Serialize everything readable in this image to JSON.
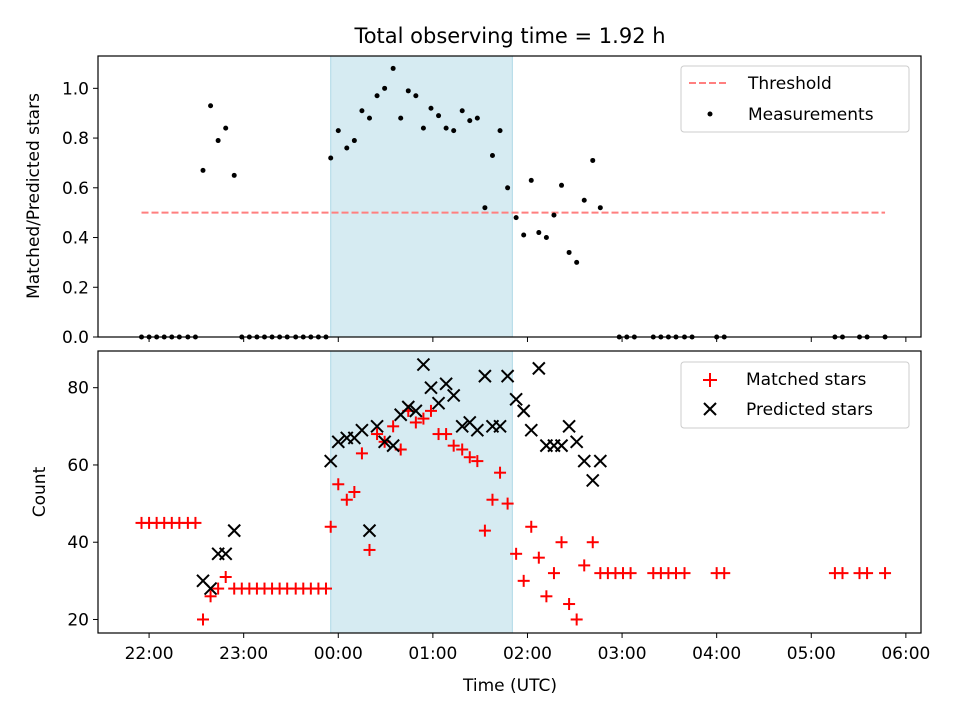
{
  "title": "Total observing time = 1.92 h",
  "xlabel": "Time (UTC)",
  "chart_data": [
    {
      "type": "scatter",
      "ylabel": "Matched/Predicted stars",
      "ylim": [
        0,
        1.13
      ],
      "yticks": [
        "0.0",
        "0.2",
        "0.4",
        "0.6",
        "0.8",
        "1.0"
      ],
      "legend_position": "top-right",
      "shaded_span_hours": [
        -0.08,
        1.84
      ],
      "shade_color": "#add8e6",
      "threshold": {
        "name": "Threshold",
        "value": 0.5,
        "x_range_hours": [
          -2.08,
          5.78
        ],
        "color": "#ff7f7f",
        "style": "dashed"
      },
      "measurements": {
        "name": "Measurements",
        "color": "#000000",
        "points": [
          [
            -2.08,
            0
          ],
          [
            -2.0,
            0
          ],
          [
            -1.92,
            0
          ],
          [
            -1.84,
            0
          ],
          [
            -1.76,
            0
          ],
          [
            -1.68,
            0
          ],
          [
            -1.59,
            0
          ],
          [
            -1.51,
            0
          ],
          [
            -1.43,
            0.67
          ],
          [
            -1.35,
            0.93
          ],
          [
            -1.27,
            0.79
          ],
          [
            -1.19,
            0.84
          ],
          [
            -1.1,
            0.65
          ],
          [
            -1.02,
            0
          ],
          [
            -0.94,
            0
          ],
          [
            -0.86,
            0
          ],
          [
            -0.78,
            0
          ],
          [
            -0.7,
            0
          ],
          [
            -0.62,
            0
          ],
          [
            -0.54,
            0
          ],
          [
            -0.45,
            0
          ],
          [
            -0.37,
            0
          ],
          [
            -0.29,
            0
          ],
          [
            -0.21,
            0
          ],
          [
            -0.13,
            0
          ],
          [
            -0.08,
            0.72
          ],
          [
            0.0,
            0.83
          ],
          [
            0.09,
            0.76
          ],
          [
            0.17,
            0.79
          ],
          [
            0.25,
            0.91
          ],
          [
            0.33,
            0.88
          ],
          [
            0.41,
            0.97
          ],
          [
            0.49,
            1.0
          ],
          [
            0.58,
            1.08
          ],
          [
            0.66,
            0.88
          ],
          [
            0.74,
            0.99
          ],
          [
            0.82,
            0.97
          ],
          [
            0.9,
            0.84
          ],
          [
            0.98,
            0.92
          ],
          [
            1.06,
            0.89
          ],
          [
            1.14,
            0.84
          ],
          [
            1.22,
            0.83
          ],
          [
            1.31,
            0.91
          ],
          [
            1.39,
            0.87
          ],
          [
            1.47,
            0.88
          ],
          [
            1.55,
            0.52
          ],
          [
            1.63,
            0.73
          ],
          [
            1.71,
            0.83
          ],
          [
            1.79,
            0.6
          ],
          [
            1.88,
            0.48
          ],
          [
            1.96,
            0.41
          ],
          [
            2.04,
            0.63
          ],
          [
            2.12,
            0.42
          ],
          [
            2.2,
            0.4
          ],
          [
            2.28,
            0.49
          ],
          [
            2.36,
            0.61
          ],
          [
            2.44,
            0.34
          ],
          [
            2.52,
            0.3
          ],
          [
            2.6,
            0.55
          ],
          [
            2.69,
            0.71
          ],
          [
            2.77,
            0.52
          ],
          [
            2.97,
            0
          ],
          [
            3.05,
            0
          ],
          [
            3.13,
            0
          ],
          [
            3.33,
            0
          ],
          [
            3.41,
            0
          ],
          [
            3.49,
            0
          ],
          [
            3.57,
            0
          ],
          [
            3.66,
            0
          ],
          [
            3.74,
            0
          ],
          [
            4.0,
            0
          ],
          [
            4.08,
            0
          ],
          [
            5.25,
            0
          ],
          [
            5.33,
            0
          ],
          [
            5.51,
            0
          ],
          [
            5.59,
            0
          ],
          [
            5.78,
            0
          ]
        ]
      }
    },
    {
      "type": "scatter",
      "ylabel": "Count",
      "ylim": [
        16.5,
        89.5
      ],
      "yticks": [
        "20",
        "40",
        "60",
        "80"
      ],
      "legend_position": "top-right",
      "shaded_span_hours": [
        -0.08,
        1.84
      ],
      "shade_color": "#add8e6",
      "series": [
        {
          "name": "Matched stars",
          "marker": "+",
          "color": "#ff0000",
          "points": [
            [
              -2.08,
              45
            ],
            [
              -2.0,
              45
            ],
            [
              -1.92,
              45
            ],
            [
              -1.84,
              45
            ],
            [
              -1.76,
              45
            ],
            [
              -1.68,
              45
            ],
            [
              -1.59,
              45
            ],
            [
              -1.51,
              45
            ],
            [
              -1.43,
              20
            ],
            [
              -1.35,
              26
            ],
            [
              -1.27,
              28
            ],
            [
              -1.19,
              31
            ],
            [
              -1.1,
              28
            ],
            [
              -1.02,
              28
            ],
            [
              -0.94,
              28
            ],
            [
              -0.86,
              28
            ],
            [
              -0.78,
              28
            ],
            [
              -0.7,
              28
            ],
            [
              -0.62,
              28
            ],
            [
              -0.54,
              28
            ],
            [
              -0.45,
              28
            ],
            [
              -0.37,
              28
            ],
            [
              -0.29,
              28
            ],
            [
              -0.21,
              28
            ],
            [
              -0.13,
              28
            ],
            [
              -0.08,
              44
            ],
            [
              0.0,
              55
            ],
            [
              0.09,
              51
            ],
            [
              0.17,
              53
            ],
            [
              0.25,
              63
            ],
            [
              0.33,
              38
            ],
            [
              0.41,
              68
            ],
            [
              0.49,
              66
            ],
            [
              0.58,
              70
            ],
            [
              0.66,
              64
            ],
            [
              0.74,
              74
            ],
            [
              0.82,
              71
            ],
            [
              0.9,
              72
            ],
            [
              0.98,
              74
            ],
            [
              1.06,
              68
            ],
            [
              1.14,
              68
            ],
            [
              1.22,
              65
            ],
            [
              1.31,
              64
            ],
            [
              1.39,
              62
            ],
            [
              1.47,
              61
            ],
            [
              1.55,
              43
            ],
            [
              1.63,
              51
            ],
            [
              1.71,
              58
            ],
            [
              1.79,
              50
            ],
            [
              1.88,
              37
            ],
            [
              1.96,
              30
            ],
            [
              2.04,
              44
            ],
            [
              2.12,
              36
            ],
            [
              2.2,
              26
            ],
            [
              2.28,
              32
            ],
            [
              2.36,
              40
            ],
            [
              2.44,
              24
            ],
            [
              2.52,
              20
            ],
            [
              2.6,
              34
            ],
            [
              2.69,
              40
            ],
            [
              2.77,
              32
            ],
            [
              2.85,
              32
            ],
            [
              2.93,
              32
            ],
            [
              3.01,
              32
            ],
            [
              3.09,
              32
            ],
            [
              3.33,
              32
            ],
            [
              3.41,
              32
            ],
            [
              3.49,
              32
            ],
            [
              3.57,
              32
            ],
            [
              3.66,
              32
            ],
            [
              4.0,
              32
            ],
            [
              4.08,
              32
            ],
            [
              5.25,
              32
            ],
            [
              5.33,
              32
            ],
            [
              5.51,
              32
            ],
            [
              5.59,
              32
            ],
            [
              5.78,
              32
            ]
          ]
        },
        {
          "name": "Predicted stars",
          "marker": "x",
          "color": "#000000",
          "points": [
            [
              -1.43,
              30
            ],
            [
              -1.35,
              28
            ],
            [
              -1.27,
              37
            ],
            [
              -1.19,
              37
            ],
            [
              -1.1,
              43
            ],
            [
              -0.08,
              61
            ],
            [
              0.0,
              66
            ],
            [
              0.09,
              67
            ],
            [
              0.17,
              67
            ],
            [
              0.25,
              69
            ],
            [
              0.33,
              43
            ],
            [
              0.41,
              70
            ],
            [
              0.49,
              66
            ],
            [
              0.58,
              65
            ],
            [
              0.66,
              73
            ],
            [
              0.74,
              75
            ],
            [
              0.82,
              74
            ],
            [
              0.9,
              86
            ],
            [
              0.98,
              80
            ],
            [
              1.06,
              76
            ],
            [
              1.14,
              81
            ],
            [
              1.22,
              78
            ],
            [
              1.31,
              70
            ],
            [
              1.39,
              71
            ],
            [
              1.47,
              69
            ],
            [
              1.55,
              83
            ],
            [
              1.63,
              70
            ],
            [
              1.71,
              70
            ],
            [
              1.79,
              83
            ],
            [
              1.88,
              77
            ],
            [
              1.96,
              74
            ],
            [
              2.04,
              69
            ],
            [
              2.12,
              85
            ],
            [
              2.2,
              65
            ],
            [
              2.28,
              65
            ],
            [
              2.36,
              65
            ],
            [
              2.44,
              70
            ],
            [
              2.52,
              66
            ],
            [
              2.6,
              61
            ],
            [
              2.69,
              56
            ],
            [
              2.77,
              61
            ]
          ]
        }
      ]
    }
  ],
  "xaxis": {
    "range_hours": [
      -2.54,
      6.16
    ],
    "ticks": [
      {
        "hours": -2,
        "label": "22:00"
      },
      {
        "hours": -1,
        "label": "23:00"
      },
      {
        "hours": 0,
        "label": "00:00"
      },
      {
        "hours": 1,
        "label": "01:00"
      },
      {
        "hours": 2,
        "label": "02:00"
      },
      {
        "hours": 3,
        "label": "03:00"
      },
      {
        "hours": 4,
        "label": "04:00"
      },
      {
        "hours": 5,
        "label": "05:00"
      },
      {
        "hours": 6,
        "label": "06:00"
      }
    ]
  }
}
